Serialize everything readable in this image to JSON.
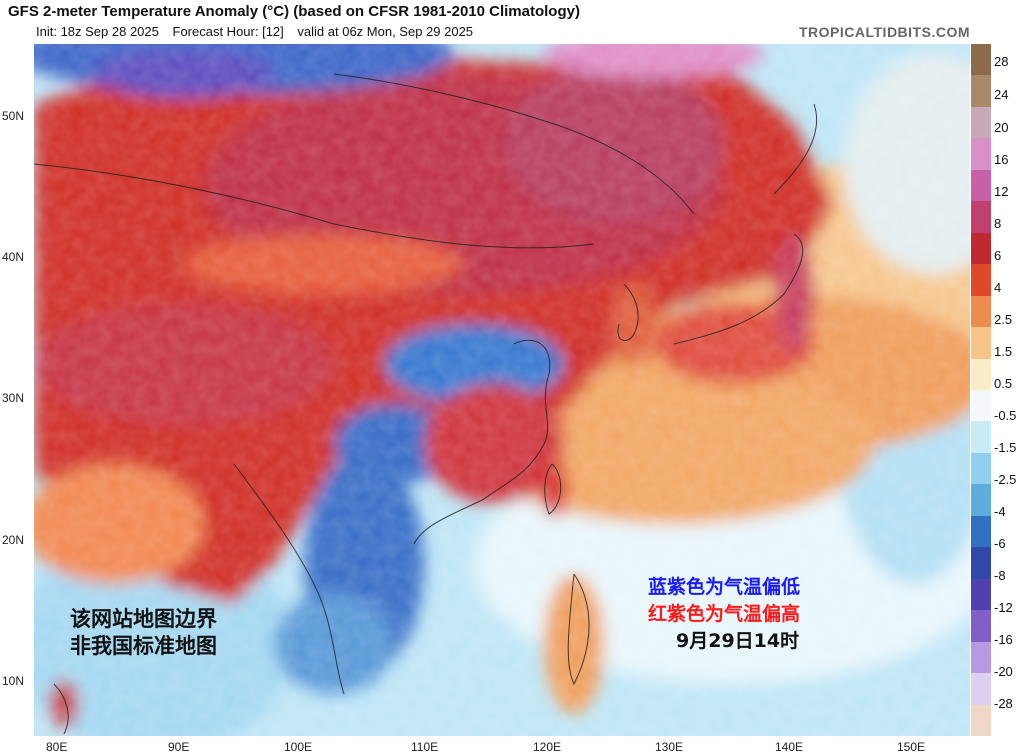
{
  "header": {
    "title": "GFS 2-meter Temperature Anomaly (°C) (based on CFSR 1981-2010 Climatology)",
    "init": "Init: 18z Sep 28 2025",
    "forecast_hour": "Forecast Hour: [12]",
    "valid": "valid at 06z Mon, Sep 29 2025",
    "site": "TROPICALTIDBITS.COM"
  },
  "axes": {
    "lat_labels": [
      "50N",
      "40N",
      "30N",
      "20N",
      "10N"
    ],
    "lon_labels": [
      "80E",
      "90E",
      "100E",
      "110E",
      "120E",
      "130E",
      "140E",
      "150E"
    ]
  },
  "colorbar": {
    "labels": [
      "28",
      "24",
      "20",
      "16",
      "12",
      "8",
      "6",
      "4",
      "2.5",
      "1.5",
      "0.5",
      "-0.5",
      "-1.5",
      "-2.5",
      "-4",
      "-6",
      "-8",
      "-12",
      "-16",
      "-20",
      "-28"
    ],
    "colors": [
      "#8c6a4a",
      "#a88a68",
      "#c8a8b8",
      "#d890c8",
      "#c860a8",
      "#c04070",
      "#c02830",
      "#e04828",
      "#ee8c50",
      "#f6c488",
      "#faecc6",
      "#f4f8fc",
      "#c8ecf6",
      "#90d0ee",
      "#5cacdc",
      "#3070c0",
      "#3048a8",
      "#5040b0",
      "#8060c8",
      "#b898e0",
      "#e0d0f0",
      "#f0d8c8"
    ]
  },
  "annotations": {
    "left_line1": "该网站地图边界",
    "left_line2": "非我国标准地图",
    "legend_blue": "蓝紫色为气温偏低",
    "legend_red": "红紫色为气温偏高",
    "time": "9月29日14时",
    "blue_color": "#1a1aff",
    "red_color": "#ff1a1a"
  }
}
